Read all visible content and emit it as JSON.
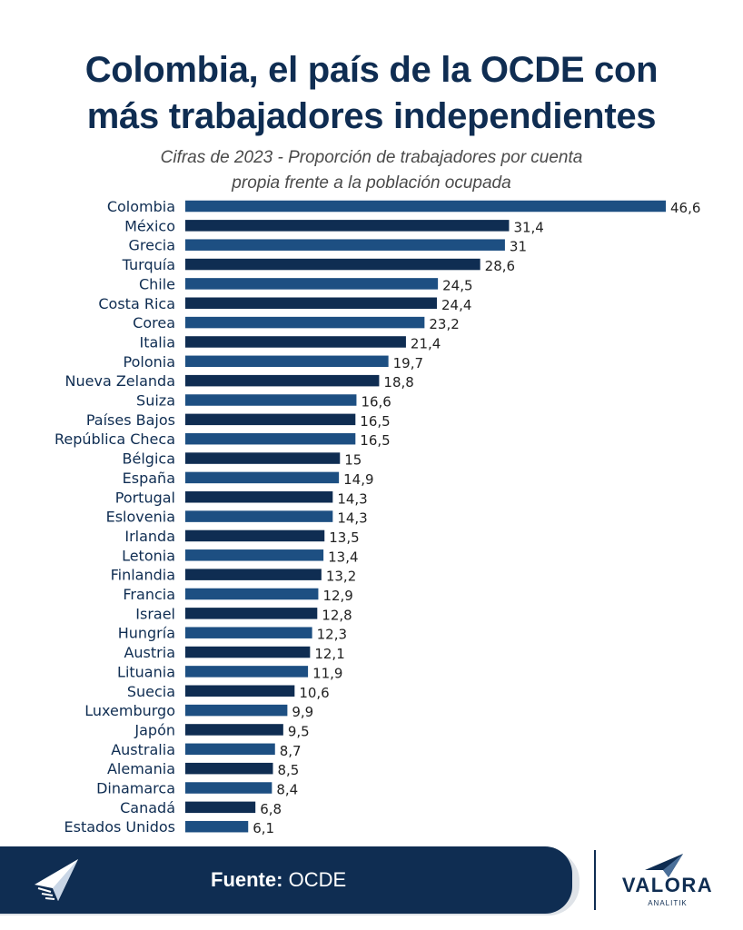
{
  "header": {
    "title_line1": "Colombia, el país de la OCDE con",
    "title_line2": "más trabajadores independientes",
    "subtitle_line1": "Cifras de 2023 - Proporción de trabajadores por cuenta",
    "subtitle_line2": "propia frente a la población ocupada"
  },
  "colors": {
    "bar_primary": "#1d4f82",
    "bar_secondary": "#0f2d52",
    "label": "#0f2d52",
    "value": "#222222"
  },
  "chart_data": {
    "type": "bar",
    "orientation": "horizontal",
    "title": "Colombia, el país de la OCDE con más trabajadores independientes",
    "subtitle": "Cifras de 2023 - Proporción de trabajadores por cuenta propia frente a la población ocupada",
    "xlabel": "",
    "ylabel": "",
    "xlim": [
      0,
      46.6
    ],
    "grid": false,
    "categories": [
      "Colombia",
      "México",
      "Grecia",
      "Turquía",
      "Chile",
      "Costa Rica",
      "Corea",
      "Italia",
      "Polonia",
      "Nueva Zelanda",
      "Suiza",
      "Países Bajos",
      "República Checa",
      "Bélgica",
      "España",
      "Portugal",
      "Eslovenia",
      "Irlanda",
      "Letonia",
      "Finlandia",
      "Francia",
      "Israel",
      "Hungría",
      "Austria",
      "Lituania",
      "Suecia",
      "Luxemburgo",
      "Japón",
      "Australia",
      "Alemania",
      "Dinamarca",
      "Canadá",
      "Estados Unidos"
    ],
    "values": [
      46.6,
      31.4,
      31,
      28.6,
      24.5,
      24.4,
      23.2,
      21.4,
      19.7,
      18.8,
      16.6,
      16.5,
      16.5,
      15,
      14.9,
      14.3,
      14.3,
      13.5,
      13.4,
      13.2,
      12.9,
      12.8,
      12.3,
      12.1,
      11.9,
      10.6,
      9.9,
      9.5,
      8.7,
      8.5,
      8.4,
      6.8,
      6.1
    ],
    "value_labels": [
      "46,6",
      "31,4",
      "31",
      "28,6",
      "24,5",
      "24,4",
      "23,2",
      "21,4",
      "19,7",
      "18,8",
      "16,6",
      "16,5",
      "16,5",
      "15",
      "14,9",
      "14,3",
      "14,3",
      "13,5",
      "13,4",
      "13,2",
      "12,9",
      "12,8",
      "12,3",
      "12,1",
      "11,9",
      "10,6",
      "9,9",
      "9,5",
      "8,7",
      "8,5",
      "8,4",
      "6,8",
      "6,1"
    ]
  },
  "footer": {
    "source_label": "Fuente:",
    "source_value": "OCDE",
    "brand_name": "VALORA",
    "brand_sub": "ANALITIK"
  }
}
